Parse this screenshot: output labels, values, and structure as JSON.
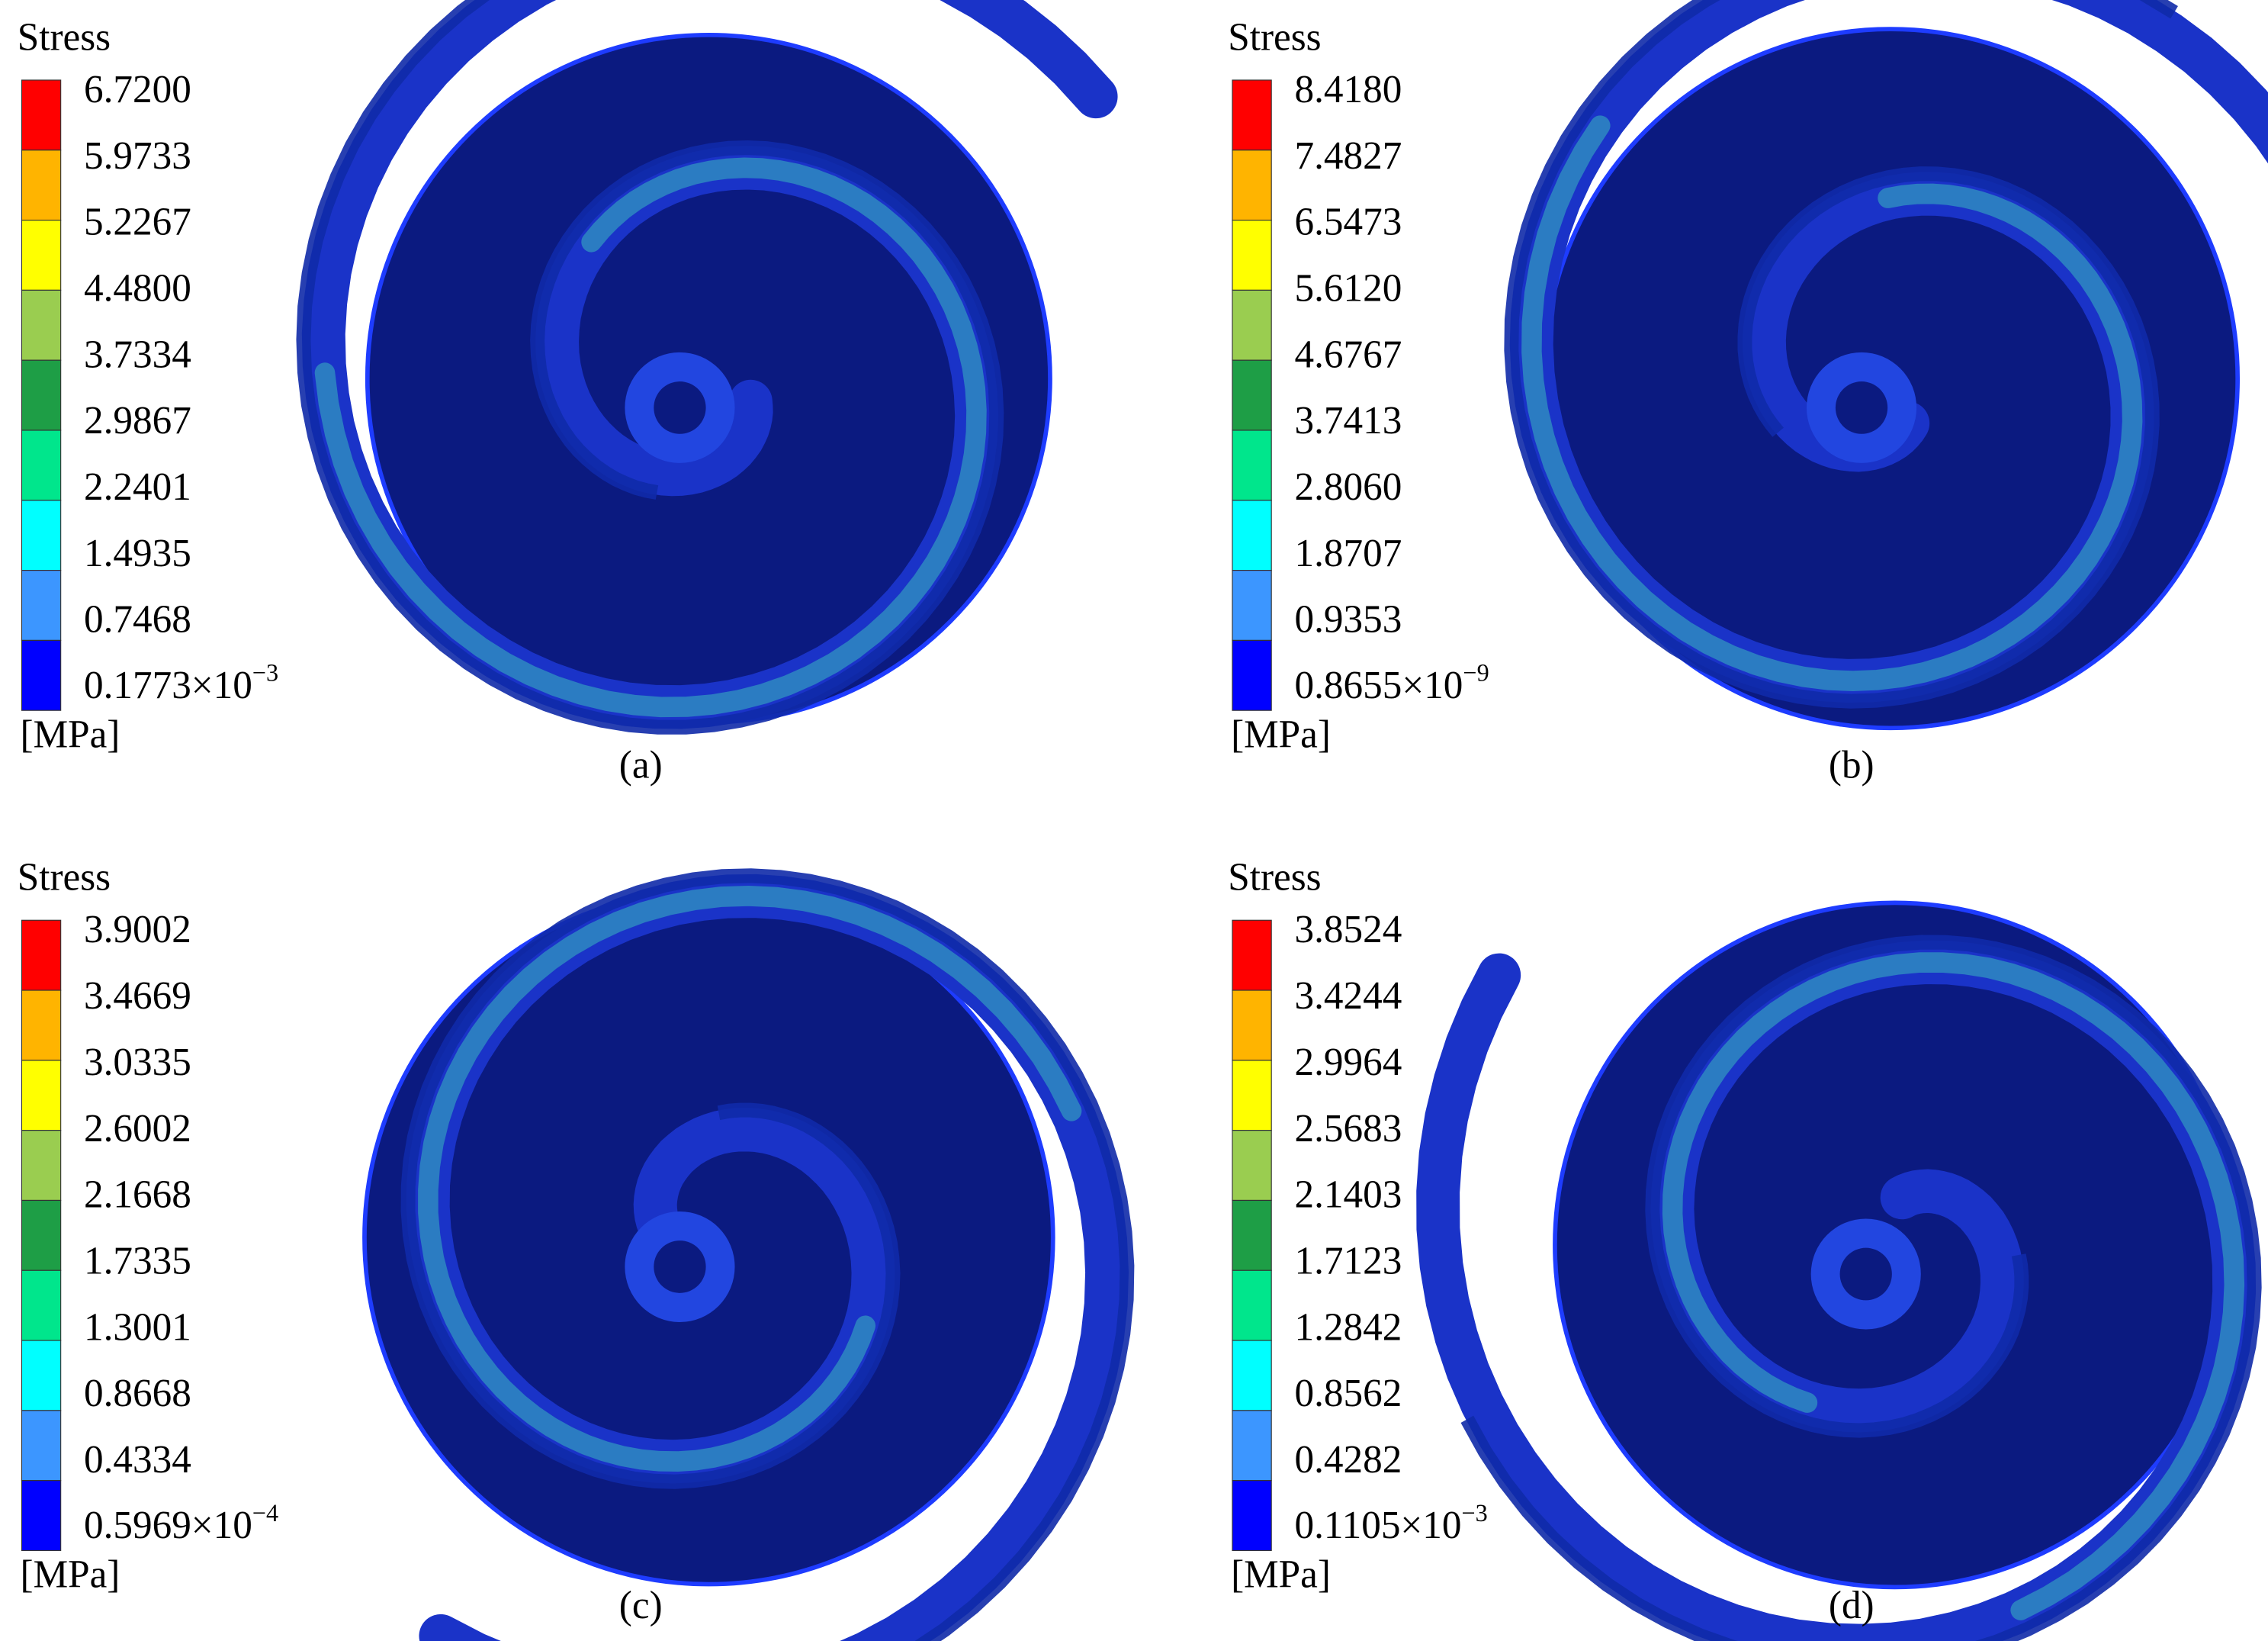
{
  "panels": [
    {
      "title": "Stress",
      "legend_labels": [
        "6.7200",
        "5.9733",
        "5.2267",
        "4.4800",
        "3.7334",
        "2.9867",
        "2.2401",
        "1.4935",
        "0.7468"
      ],
      "min_label": {
        "mantissa": "0.1773×10",
        "exponent": "−3"
      },
      "unit": "[MPa]",
      "caption": "(a)"
    },
    {
      "title": "Stress",
      "legend_labels": [
        "8.4180",
        "7.4827",
        "6.5473",
        "5.6120",
        "4.6767",
        "3.7413",
        "2.8060",
        "1.8707",
        "0.9353"
      ],
      "min_label": {
        "mantissa": "0.8655×10",
        "exponent": "−9"
      },
      "unit": "[MPa]",
      "caption": "(b)"
    },
    {
      "title": "Stress",
      "legend_labels": [
        "3.9002",
        "3.4669",
        "3.0335",
        "2.6002",
        "2.1668",
        "1.7335",
        "1.3001",
        "0.8668",
        "0.4334"
      ],
      "min_label": {
        "mantissa": "0.5969×10",
        "exponent": "−4"
      },
      "unit": "[MPa]",
      "caption": "(c)"
    },
    {
      "title": "Stress",
      "legend_labels": [
        "3.8524",
        "3.4244",
        "2.9964",
        "2.5683",
        "2.1403",
        "1.7123",
        "1.2842",
        "0.8562",
        "0.4282"
      ],
      "min_label": {
        "mantissa": "0.1105×10",
        "exponent": "−3"
      },
      "unit": "[MPa]",
      "caption": "(d)"
    }
  ]
}
